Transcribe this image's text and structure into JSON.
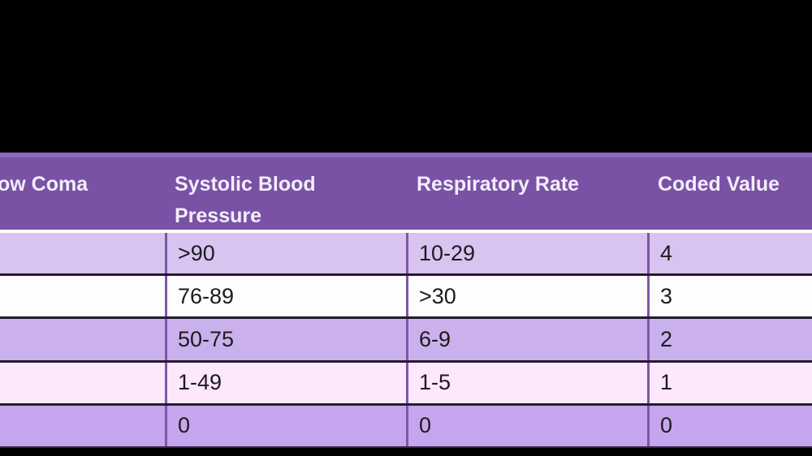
{
  "table": {
    "columns": [
      {
        "label": "ow Coma"
      },
      {
        "label": "Systolic Blood Pressure"
      },
      {
        "label": "Respiratory Rate"
      },
      {
        "label": "Coded Value"
      }
    ],
    "rows": [
      {
        "cells": [
          "",
          ">90",
          "10-29",
          "4"
        ]
      },
      {
        "cells": [
          "",
          "76-89",
          ">30",
          "3"
        ]
      },
      {
        "cells": [
          "",
          "50-75",
          "6-9",
          "2"
        ]
      },
      {
        "cells": [
          "",
          "1-49",
          "1-5",
          "1"
        ]
      },
      {
        "cells": [
          "",
          "0",
          "0",
          "0"
        ]
      }
    ],
    "colors": {
      "header_bg": "#7952A6",
      "header_top_edge": "#8C68BE",
      "header_text": "#F4EDFA",
      "header_separator": "#FFFFFF",
      "row_light_lavender": "#D8C3F1",
      "row_white": "#FDFDFD",
      "row_mid_lavender": "#CBB0EE",
      "row_pale_pink": "#FCE7FC",
      "row_deep_lavender": "#C6A5EF",
      "cell_text": "#1B1B1B",
      "vertical_divider": "#7A58A8",
      "horizontal_divider": "#241B2E",
      "letterbox": "#000000"
    }
  }
}
